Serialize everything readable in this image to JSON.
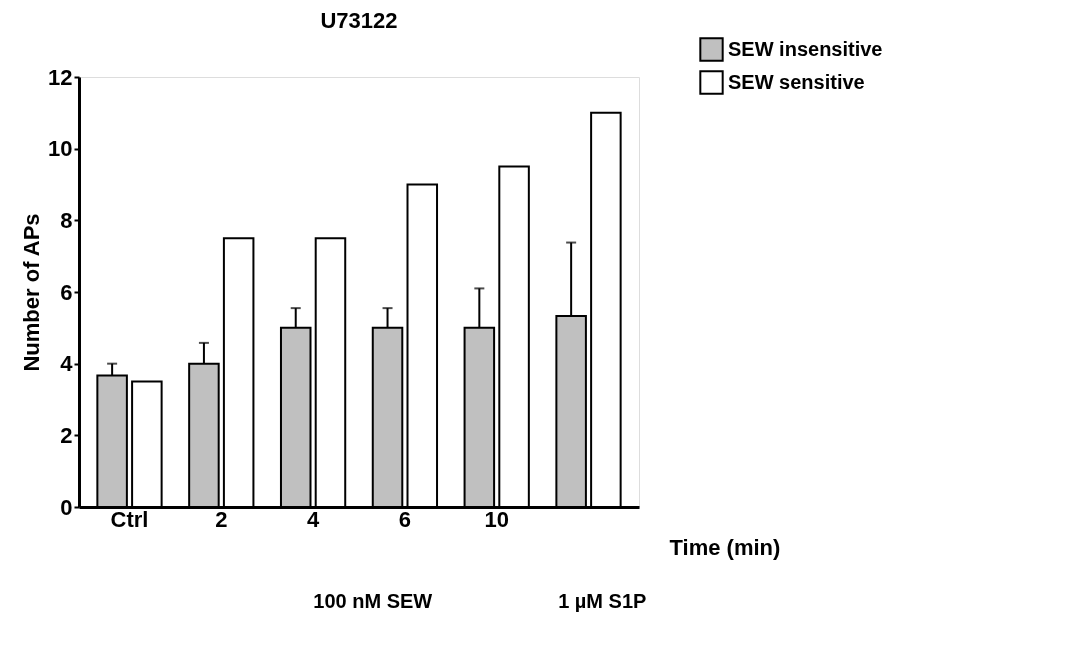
{
  "chart_data": {
    "type": "bar",
    "title": "U73122",
    "xlabel": "Time (min)",
    "ylabel": "Number of APs",
    "categories": [
      "Ctrl",
      "2",
      "4",
      "6",
      "10",
      null
    ],
    "series": [
      {
        "name": "SEW insensitive",
        "color": "#c0c0c0",
        "values": [
          3.67,
          4,
          5,
          5,
          5,
          5.33
        ],
        "errors": [
          [
            3.67,
            4.0
          ],
          [
            4,
            4.58
          ],
          [
            5,
            5.55
          ],
          [
            5,
            5.55
          ],
          [
            5,
            6.1
          ],
          [
            5.33,
            7.38
          ]
        ]
      },
      {
        "name": "SEW sensitive",
        "color": "#ffffff",
        "values": [
          3.5,
          7.5,
          7.5,
          9,
          9.5,
          11
        ]
      }
    ],
    "ylim": [
      0,
      12
    ],
    "yticks": [
      0,
      2,
      4,
      6,
      8,
      10,
      12
    ],
    "grid": false,
    "legend": "top right",
    "annotations": [
      "100 nM SEW",
      "1 µM S1P"
    ]
  }
}
